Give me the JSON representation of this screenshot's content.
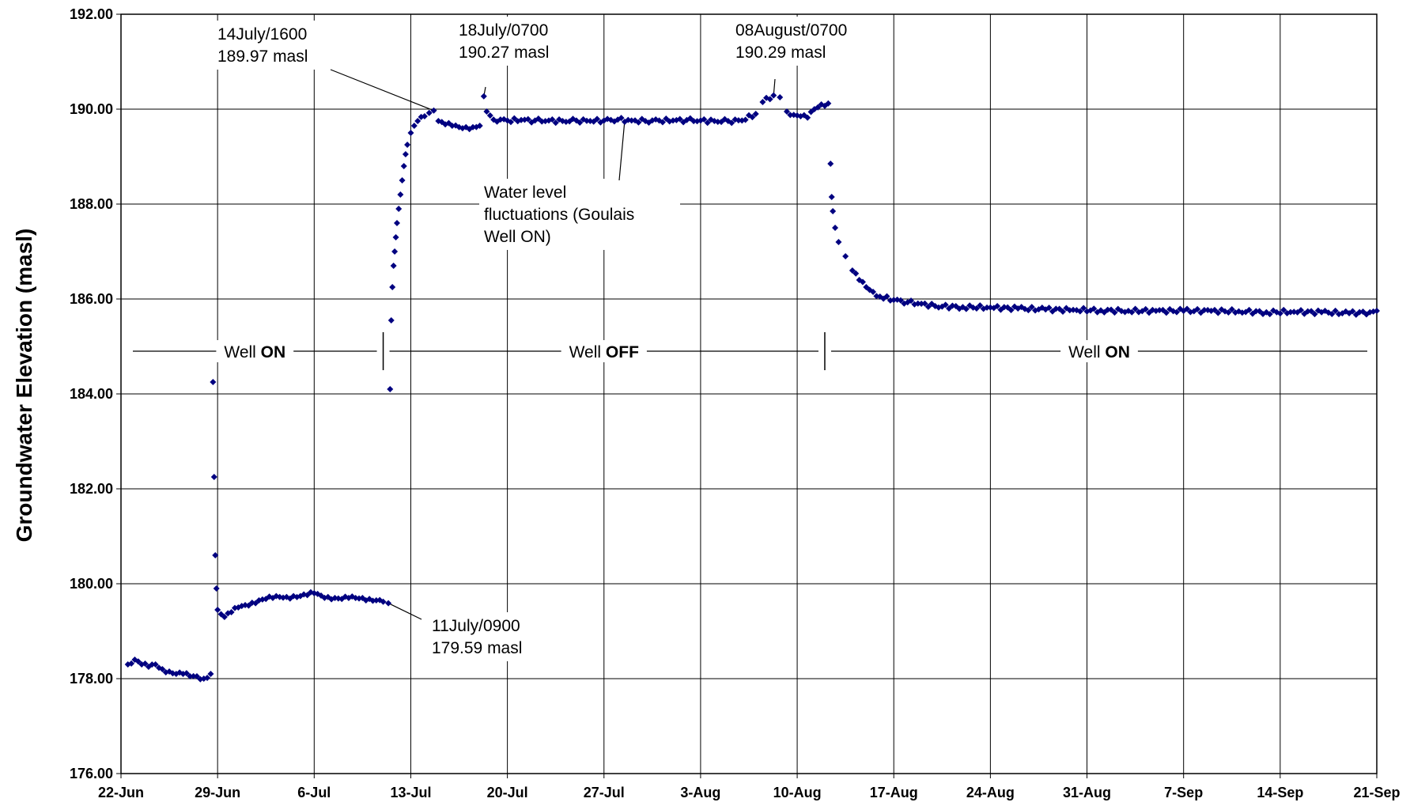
{
  "chart_data": {
    "type": "scatter",
    "title": "",
    "xlabel": "",
    "ylabel": "Groundwater Elevation (masl)",
    "xlim": [
      "2007-06-22",
      "2007-09-21"
    ],
    "ylim": [
      176,
      192
    ],
    "y_ticks": [
      "176.00",
      "178.00",
      "180.00",
      "182.00",
      "184.00",
      "186.00",
      "188.00",
      "190.00",
      "192.00"
    ],
    "x_ticks": [
      "22-Jun",
      "29-Jun",
      "6-Jul",
      "13-Jul",
      "20-Jul",
      "27-Jul",
      "3-Aug",
      "10-Aug",
      "17-Aug",
      "24-Aug",
      "31-Aug",
      "7-Sep",
      "14-Sep",
      "21-Sep"
    ],
    "grid": true,
    "marker_color": "#000080",
    "series": [
      {
        "name": "",
        "points": [
          [
            "2007-06-22 12:00",
            178.3
          ],
          [
            "2007-06-23 00:00",
            178.4
          ],
          [
            "2007-06-23 12:00",
            178.3
          ],
          [
            "2007-06-24 00:00",
            178.25
          ],
          [
            "2007-06-24 12:00",
            178.3
          ],
          [
            "2007-06-25 00:00",
            178.2
          ],
          [
            "2007-06-25 12:00",
            178.15
          ],
          [
            "2007-06-26 00:00",
            178.1
          ],
          [
            "2007-06-26 12:00",
            178.1
          ],
          [
            "2007-06-27 00:00",
            178.05
          ],
          [
            "2007-06-27 12:00",
            178.05
          ],
          [
            "2007-06-28 00:00",
            178.0
          ],
          [
            "2007-06-28 12:00",
            178.1
          ],
          [
            "2007-06-28 16:00",
            184.25
          ],
          [
            "2007-06-28 18:00",
            182.25
          ],
          [
            "2007-06-28 20:00",
            180.6
          ],
          [
            "2007-06-28 22:00",
            179.9
          ],
          [
            "2007-06-29 00:00",
            179.45
          ],
          [
            "2007-06-29 12:00",
            179.3
          ],
          [
            "2007-06-30 00:00",
            179.4
          ],
          [
            "2007-06-30 12:00",
            179.5
          ],
          [
            "2007-07-01 00:00",
            179.55
          ],
          [
            "2007-07-01 12:00",
            179.6
          ],
          [
            "2007-07-02 00:00",
            179.65
          ],
          [
            "2007-07-02 12:00",
            179.68
          ],
          [
            "2007-07-03 00:00",
            179.7
          ],
          [
            "2007-07-03 12:00",
            179.72
          ],
          [
            "2007-07-04 00:00",
            179.72
          ],
          [
            "2007-07-04 12:00",
            179.74
          ],
          [
            "2007-07-05 00:00",
            179.74
          ],
          [
            "2007-07-05 12:00",
            179.76
          ],
          [
            "2007-07-06 00:00",
            179.8
          ],
          [
            "2007-07-06 12:00",
            179.75
          ],
          [
            "2007-07-07 00:00",
            179.72
          ],
          [
            "2007-07-07 12:00",
            179.7
          ],
          [
            "2007-07-08 00:00",
            179.68
          ],
          [
            "2007-07-08 12:00",
            179.7
          ],
          [
            "2007-07-09 00:00",
            179.7
          ],
          [
            "2007-07-09 12:00",
            179.7
          ],
          [
            "2007-07-10 00:00",
            179.68
          ],
          [
            "2007-07-10 12:00",
            179.65
          ],
          [
            "2007-07-11 00:00",
            179.62
          ],
          [
            "2007-07-11 09:00",
            179.59
          ],
          [
            "2007-07-11 12:00",
            184.1
          ],
          [
            "2007-07-11 14:00",
            185.55
          ],
          [
            "2007-07-11 16:00",
            186.25
          ],
          [
            "2007-07-11 18:00",
            186.7
          ],
          [
            "2007-07-11 20:00",
            187.0
          ],
          [
            "2007-07-11 22:00",
            187.3
          ],
          [
            "2007-07-12 00:00",
            187.6
          ],
          [
            "2007-07-12 03:00",
            187.9
          ],
          [
            "2007-07-12 06:00",
            188.2
          ],
          [
            "2007-07-12 09:00",
            188.5
          ],
          [
            "2007-07-12 12:00",
            188.8
          ],
          [
            "2007-07-12 15:00",
            189.05
          ],
          [
            "2007-07-12 18:00",
            189.25
          ],
          [
            "2007-07-13 00:00",
            189.5
          ],
          [
            "2007-07-13 06:00",
            189.65
          ],
          [
            "2007-07-13 12:00",
            189.75
          ],
          [
            "2007-07-14 00:00",
            189.85
          ],
          [
            "2007-07-14 08:00",
            189.92
          ],
          [
            "2007-07-14 16:00",
            189.97
          ],
          [
            "2007-07-15 00:00",
            189.75
          ],
          [
            "2007-07-15 12:00",
            189.68
          ],
          [
            "2007-07-16 00:00",
            189.65
          ],
          [
            "2007-07-16 12:00",
            189.62
          ],
          [
            "2007-07-17 00:00",
            189.62
          ],
          [
            "2007-07-17 12:00",
            189.62
          ],
          [
            "2007-07-18 00:00",
            189.65
          ],
          [
            "2007-07-18 07:00",
            190.27
          ],
          [
            "2007-07-18 12:00",
            189.95
          ],
          [
            "2007-07-19 00:00",
            189.78
          ],
          [
            "2007-07-20 00:00",
            189.76
          ],
          [
            "2007-07-21 00:00",
            189.77
          ],
          [
            "2007-07-22 00:00",
            189.76
          ],
          [
            "2007-07-23 00:00",
            189.76
          ],
          [
            "2007-07-24 00:00",
            189.75
          ],
          [
            "2007-07-25 00:00",
            189.76
          ],
          [
            "2007-07-26 00:00",
            189.75
          ],
          [
            "2007-07-27 00:00",
            189.76
          ],
          [
            "2007-07-28 00:00",
            189.78
          ],
          [
            "2007-07-29 00:00",
            189.76
          ],
          [
            "2007-07-30 00:00",
            189.75
          ],
          [
            "2007-07-31 00:00",
            189.76
          ],
          [
            "2007-08-01 00:00",
            189.76
          ],
          [
            "2007-08-02 00:00",
            189.77
          ],
          [
            "2007-08-03 00:00",
            189.76
          ],
          [
            "2007-08-04 00:00",
            189.75
          ],
          [
            "2007-08-05 00:00",
            189.75
          ],
          [
            "2007-08-06 00:00",
            189.76
          ],
          [
            "2007-08-07 00:00",
            189.9
          ],
          [
            "2007-08-07 12:00",
            190.15
          ],
          [
            "2007-08-08 07:00",
            190.29
          ],
          [
            "2007-08-08 18:00",
            190.25
          ],
          [
            "2007-08-09 06:00",
            189.95
          ],
          [
            "2007-08-09 18:00",
            189.88
          ],
          [
            "2007-08-10 06:00",
            189.85
          ],
          [
            "2007-08-10 18:00",
            189.82
          ],
          [
            "2007-08-11 06:00",
            190.0
          ],
          [
            "2007-08-11 18:00",
            190.1
          ],
          [
            "2007-08-12 06:00",
            190.12
          ],
          [
            "2007-08-12 10:00",
            188.85
          ],
          [
            "2007-08-12 12:00",
            188.15
          ],
          [
            "2007-08-12 14:00",
            187.85
          ],
          [
            "2007-08-12 18:00",
            187.5
          ],
          [
            "2007-08-13 00:00",
            187.2
          ],
          [
            "2007-08-13 12:00",
            186.9
          ],
          [
            "2007-08-14 00:00",
            186.6
          ],
          [
            "2007-08-14 12:00",
            186.4
          ],
          [
            "2007-08-15 00:00",
            186.25
          ],
          [
            "2007-08-15 12:00",
            186.15
          ],
          [
            "2007-08-16 00:00",
            186.05
          ],
          [
            "2007-08-17 00:00",
            185.98
          ],
          [
            "2007-08-18 00:00",
            185.93
          ],
          [
            "2007-08-19 00:00",
            185.9
          ],
          [
            "2007-08-20 00:00",
            185.85
          ],
          [
            "2007-08-22 00:00",
            185.83
          ],
          [
            "2007-08-24 00:00",
            185.82
          ],
          [
            "2007-08-26 00:00",
            185.8
          ],
          [
            "2007-08-28 00:00",
            185.78
          ],
          [
            "2007-08-30 00:00",
            185.77
          ],
          [
            "2007-09-01 00:00",
            185.76
          ],
          [
            "2007-09-03 00:00",
            185.75
          ],
          [
            "2007-09-05 00:00",
            185.75
          ],
          [
            "2007-09-07 00:00",
            185.75
          ],
          [
            "2007-09-09 00:00",
            185.75
          ],
          [
            "2007-09-11 00:00",
            185.74
          ],
          [
            "2007-09-13 00:00",
            185.72
          ],
          [
            "2007-09-15 00:00",
            185.73
          ],
          [
            "2007-09-17 00:00",
            185.72
          ],
          [
            "2007-09-19 00:00",
            185.7
          ],
          [
            "2007-09-20 12:00",
            185.72
          ],
          [
            "2007-09-21 00:00",
            185.75
          ]
        ]
      }
    ],
    "annotations": [
      {
        "lines": [
          "14July/1600",
          "189.97 masl"
        ],
        "point": [
          "2007-07-14 16:00",
          189.97
        ]
      },
      {
        "lines": [
          "18July/0700",
          "190.27 masl"
        ],
        "point": [
          "2007-07-18 07:00",
          190.27
        ]
      },
      {
        "lines": [
          "08August/0700",
          "190.29 masl"
        ],
        "point": [
          "2007-08-08 07:00",
          190.29
        ]
      },
      {
        "lines": [
          "Water level",
          "fluctuations  (Goulais",
          "Well ON)"
        ],
        "point": [
          "2007-07-28 12:00",
          189.76
        ]
      },
      {
        "lines": [
          "11July/0900",
          "179.59 masl"
        ],
        "point": [
          "2007-07-11 09:00",
          179.59
        ]
      }
    ],
    "well_status": [
      {
        "text": "Well ",
        "bold": "ON",
        "from": "2007-06-22",
        "to": "2007-07-11"
      },
      {
        "text": "Well ",
        "bold": "OFF",
        "from": "2007-07-11",
        "to": "2007-08-12"
      },
      {
        "text": "Well ",
        "bold": "ON",
        "from": "2007-08-12",
        "to": "2007-09-21"
      }
    ],
    "well_status_level": 184.9
  }
}
